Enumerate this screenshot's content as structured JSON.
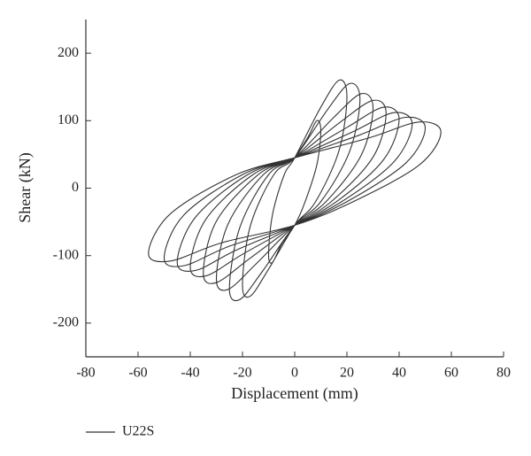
{
  "chart_data": {
    "type": "line",
    "x_label": "Displacement (mm)",
    "y_label": "Shear (kN)",
    "xlim": [
      -80,
      80
    ],
    "xticks": [
      -80,
      -60,
      -40,
      -20,
      0,
      20,
      40,
      60,
      80
    ],
    "ylim": [
      -250,
      250
    ],
    "yticks": [
      -200,
      -100,
      0,
      100,
      200
    ],
    "grid": false,
    "legend": "bottom-left",
    "series": [
      {
        "name": "U22S",
        "color": "#333333",
        "x": [
          0,
          5,
          8.5,
          10,
          8.5,
          4,
          0,
          -5,
          -8.5,
          -10,
          -8.5,
          -4,
          0,
          10,
          17,
          20,
          17,
          8,
          0,
          -10,
          -17,
          -20,
          -17,
          -8,
          0,
          12.5,
          21,
          25,
          21,
          10,
          0,
          -12.5,
          -21,
          -25,
          -21,
          -10,
          0,
          15,
          25.5,
          30,
          25.5,
          12,
          0,
          -15,
          -25.5,
          -30,
          -25.5,
          -12,
          0,
          17.5,
          30,
          35,
          30,
          14,
          0,
          -17.5,
          -30,
          -35,
          -30,
          -14,
          0,
          20,
          34,
          40,
          34,
          16,
          0,
          -20,
          -34,
          -40,
          -34,
          -16,
          0,
          22.5,
          38,
          45,
          38,
          18,
          0,
          -22.5,
          -38,
          -45,
          -38,
          -18,
          0,
          25,
          42.5,
          50,
          42.5,
          20,
          0,
          -25,
          -42.5,
          -50,
          -42.5,
          -20,
          0,
          28,
          47.6,
          56,
          47.6,
          22.4,
          0,
          -28,
          -47.6,
          -56,
          -47.6,
          -22.4,
          0
        ],
        "values": [
          45,
          75,
          100,
          85,
          35,
          -20,
          -55,
          -83,
          -110,
          -99,
          -39,
          20,
          45,
          120,
          160,
          136,
          56,
          -20,
          -55,
          -120,
          -160,
          -144,
          -56,
          20,
          45,
          116,
          155,
          132,
          54,
          -20,
          -55,
          -124,
          -165,
          -149,
          -58,
          20,
          45,
          105,
          140,
          119,
          49,
          -20,
          -55,
          -113,
          -150,
          -135,
          -53,
          20,
          45,
          98,
          130,
          111,
          46,
          -20,
          -55,
          -105,
          -140,
          -126,
          -49,
          20,
          45,
          90,
          120,
          102,
          42,
          -20,
          -55,
          -98,
          -130,
          -117,
          -46,
          20,
          45,
          84,
          112,
          95,
          39,
          -20,
          -55,
          -92,
          -122,
          -110,
          -43,
          20,
          45,
          79,
          105,
          89,
          37,
          -20,
          -55,
          -86,
          -115,
          -104,
          -40,
          20,
          45,
          74,
          98,
          83,
          34,
          -20,
          -55,
          -81,
          -108,
          -97,
          -38,
          20,
          45
        ]
      }
    ]
  }
}
